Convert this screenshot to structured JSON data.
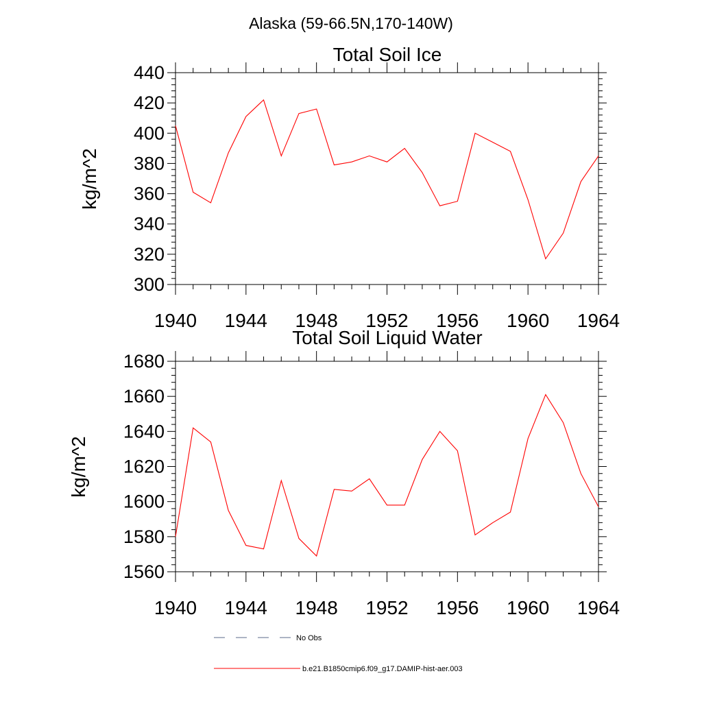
{
  "figure": {
    "title": "Alaska (59-66.5N,170-140W)"
  },
  "colors": {
    "series": "#ff0000",
    "obs": "#5a6a8a",
    "axis": "#000000",
    "background": "#ffffff"
  },
  "legend": {
    "placement": "bottom-left",
    "entries": [
      {
        "label": "No Obs",
        "style": "dashed",
        "color": "#5a6a8a"
      },
      {
        "label": "b.e21.B1850cmip6.f09_g17.DAMIP-hist-aer.003",
        "style": "solid",
        "color": "#ff0000"
      }
    ]
  },
  "chart_data": [
    {
      "type": "line",
      "title": "Total Soil Ice",
      "xlabel": "",
      "ylabel": "kg/m^2",
      "xlim": [
        1940,
        1964
      ],
      "ylim": [
        300,
        440
      ],
      "xticks": [
        "1940",
        "1944",
        "1948",
        "1952",
        "1956",
        "1960",
        "1964"
      ],
      "yticks": [
        "300",
        "320",
        "340",
        "360",
        "380",
        "400",
        "420",
        "440"
      ],
      "grid": false,
      "x": [
        1940,
        1941,
        1942,
        1943,
        1944,
        1945,
        1946,
        1947,
        1948,
        1949,
        1950,
        1951,
        1952,
        1953,
        1954,
        1955,
        1956,
        1957,
        1958,
        1959,
        1960,
        1961,
        1962,
        1963,
        1964
      ],
      "series": [
        {
          "name": "b.e21.B1850cmip6.f09_g17.DAMIP-hist-aer.003",
          "values": [
            405,
            361,
            354,
            387,
            411,
            422,
            385,
            413,
            416,
            379,
            381,
            385,
            381,
            390,
            374,
            352,
            355,
            400,
            394,
            388,
            356,
            317,
            334,
            368,
            385
          ]
        }
      ]
    },
    {
      "type": "line",
      "title": "Total Soil Liquid Water",
      "xlabel": "",
      "ylabel": "kg/m^2",
      "xlim": [
        1940,
        1964
      ],
      "ylim": [
        1560,
        1680
      ],
      "xticks": [
        "1940",
        "1944",
        "1948",
        "1952",
        "1956",
        "1960",
        "1964"
      ],
      "yticks": [
        "1560",
        "1580",
        "1600",
        "1620",
        "1640",
        "1660",
        "1680"
      ],
      "grid": false,
      "x": [
        1940,
        1941,
        1942,
        1943,
        1944,
        1945,
        1946,
        1947,
        1948,
        1949,
        1950,
        1951,
        1952,
        1953,
        1954,
        1955,
        1956,
        1957,
        1958,
        1959,
        1960,
        1961,
        1962,
        1963,
        1964
      ],
      "series": [
        {
          "name": "b.e21.B1850cmip6.f09_g17.DAMIP-hist-aer.003",
          "values": [
            1580,
            1642,
            1634,
            1595,
            1575,
            1573,
            1612,
            1579,
            1569,
            1607,
            1606,
            1613,
            1598,
            1598,
            1624,
            1640,
            1629,
            1581,
            1588,
            1594,
            1636,
            1661,
            1645,
            1616,
            1597
          ]
        }
      ]
    }
  ]
}
